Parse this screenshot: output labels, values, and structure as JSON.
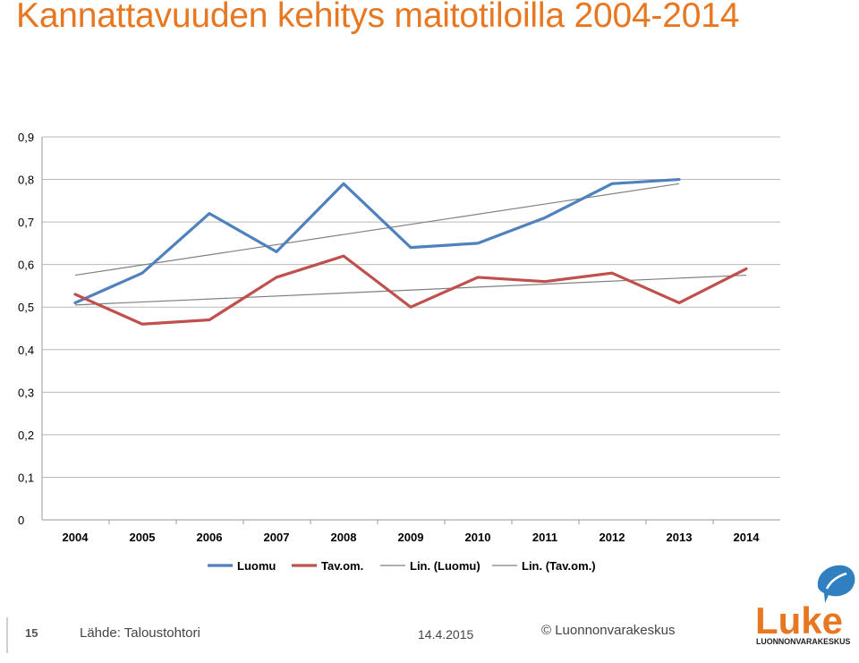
{
  "slide": {
    "title": "Kannattavuuden kehitys maitotiloilla 2004-2014",
    "page_number": "15",
    "source": "Lähde: Taloustohtori",
    "date": "14.4.2015",
    "copyright": "© Luonnonvarakeskus",
    "logo": {
      "word": "Luke",
      "subtitle": "LUONNONVARAKESKUS",
      "color": "#e87722",
      "icon_color": "#2f7fc1"
    }
  },
  "chart_data": {
    "type": "line",
    "x": [
      "2004",
      "2005",
      "2006",
      "2007",
      "2008",
      "2009",
      "2010",
      "2011",
      "2012",
      "2013",
      "2014"
    ],
    "y_ticks": [
      "0",
      "0,1",
      "0,2",
      "0,3",
      "0,4",
      "0,5",
      "0,6",
      "0,7",
      "0,8",
      "0,9"
    ],
    "ylim": [
      0,
      0.9
    ],
    "grid": true,
    "legend_position": "bottom",
    "series": [
      {
        "name": "Luomu",
        "color": "#4f81bd",
        "values": [
          0.51,
          0.58,
          0.72,
          0.63,
          0.79,
          0.64,
          0.65,
          0.71,
          0.79,
          0.8,
          null
        ]
      },
      {
        "name": "Tav.om.",
        "color": "#c0504d",
        "values": [
          0.53,
          0.46,
          0.47,
          0.57,
          0.62,
          0.5,
          0.57,
          0.56,
          0.58,
          0.51,
          0.59
        ]
      }
    ],
    "trendlines": [
      {
        "name": "Lin. (Luomu)",
        "color": "#808080",
        "start": 0.575,
        "end": 0.79,
        "x_start": "2004",
        "x_end": "2013"
      },
      {
        "name": "Lin. (Tav.om.)",
        "color": "#808080",
        "start": 0.505,
        "end": 0.575,
        "x_start": "2004",
        "x_end": "2014"
      }
    ]
  }
}
